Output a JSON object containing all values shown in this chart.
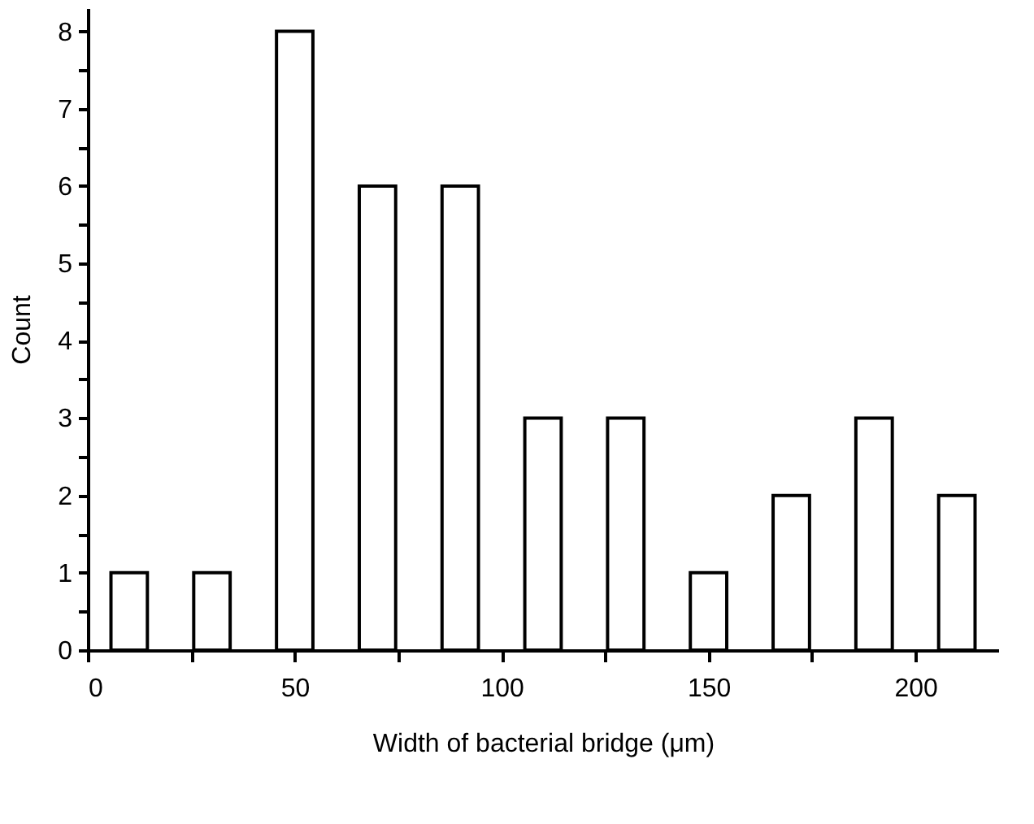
{
  "chart_data": {
    "type": "bar",
    "xlabel": "Width of bacterial bridge (μm)",
    "ylabel": "Count",
    "x": [
      10,
      30,
      50,
      70,
      90,
      110,
      130,
      150,
      170,
      190,
      210
    ],
    "values": [
      1,
      1,
      8,
      6,
      6,
      3,
      3,
      1,
      2,
      3,
      2
    ],
    "color": "#000000",
    "xlim": [
      0,
      220
    ],
    "xticks": [
      0,
      {
        "value": 25,
        "label": null
      },
      50,
      {
        "value": 75,
        "label": null
      },
      100,
      {
        "value": 125,
        "label": null
      },
      150,
      {
        "value": 175,
        "label": null
      },
      200
    ],
    "ylim": [
      0,
      8.3
    ],
    "yticks": [
      0,
      {
        "value": 0.5,
        "label": null
      },
      1,
      {
        "value": 1.5,
        "label": null
      },
      2,
      {
        "value": 2.5,
        "label": null
      },
      3,
      {
        "value": 3.5,
        "label": null
      },
      4,
      {
        "value": 4.5,
        "label": null
      },
      5,
      {
        "value": 5.5,
        "label": null
      },
      6,
      {
        "value": 6.5,
        "label": null
      },
      7,
      {
        "value": 7.5,
        "label": null
      },
      8
    ],
    "grid": false
  }
}
